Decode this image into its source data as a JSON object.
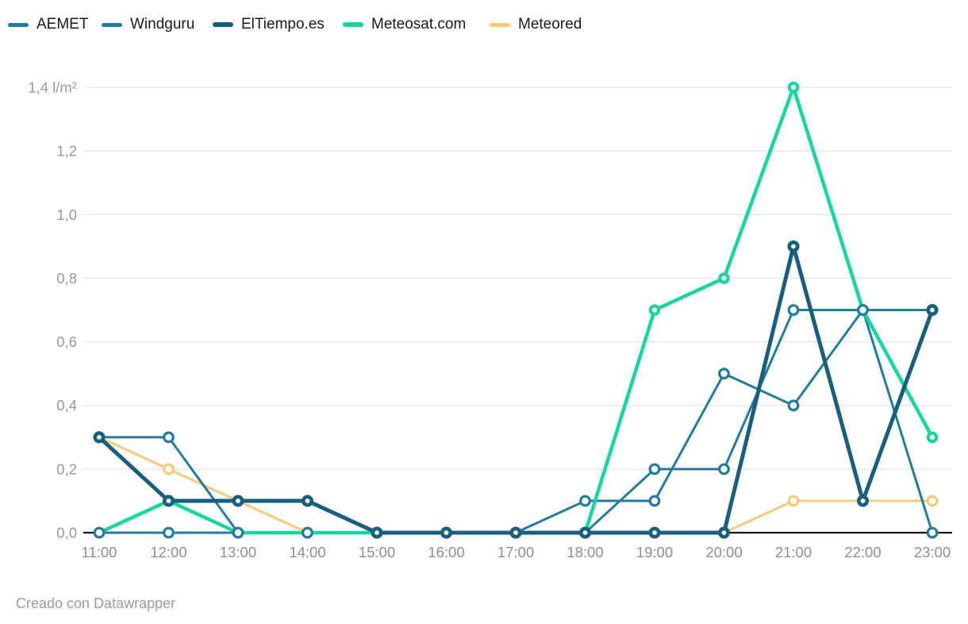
{
  "footer": {
    "credit": "Creado con Datawrapper"
  },
  "chart_data": {
    "type": "line",
    "title": "",
    "xlabel": "",
    "ylabel": "l/m²",
    "unit": "l/m²",
    "ylim": [
      0,
      1.4
    ],
    "grid": true,
    "legend_position": "top-left",
    "categories": [
      "11:00",
      "12:00",
      "13:00",
      "14:00",
      "15:00",
      "16:00",
      "17:00",
      "18:00",
      "19:00",
      "20:00",
      "21:00",
      "22:00",
      "23:00"
    ],
    "y_ticks": [
      {
        "v": 0.0,
        "label": "0,0"
      },
      {
        "v": 0.2,
        "label": "0,2"
      },
      {
        "v": 0.4,
        "label": "0,4"
      },
      {
        "v": 0.6,
        "label": "0,6"
      },
      {
        "v": 0.8,
        "label": "0,8"
      },
      {
        "v": 1.0,
        "label": "1,0"
      },
      {
        "v": 1.2,
        "label": "1,2"
      },
      {
        "v": 1.4,
        "label": "1,4 l/m²"
      }
    ],
    "series": [
      {
        "name": "AEMET",
        "color": "#227c9d",
        "values": [
          0,
          0,
          0,
          0,
          0,
          0,
          0,
          0.1,
          0.1,
          0.5,
          0.4,
          0.7,
          0
        ]
      },
      {
        "name": "Windguru",
        "color": "#227c9d",
        "values": [
          0.3,
          0.3,
          0,
          0,
          0,
          0,
          0,
          0,
          0.2,
          0.2,
          0.7,
          0.7,
          0.7
        ]
      },
      {
        "name": "ElTiempo.es",
        "color": "#195e7d",
        "values": [
          0.3,
          0.1,
          0.1,
          0.1,
          0,
          0,
          0,
          0,
          0,
          0,
          0.9,
          0.1,
          0.7
        ]
      },
      {
        "name": "Meteosat.com",
        "color": "#17d6a0",
        "values": [
          0,
          0.1,
          0,
          0,
          0,
          0,
          0,
          0,
          0.7,
          0.8,
          1.4,
          0.7,
          0.3
        ]
      },
      {
        "name": "Meteored",
        "color": "#fbc97a",
        "values": [
          0.3,
          0.2,
          0.1,
          0,
          0,
          0,
          0,
          0,
          0,
          0,
          0.1,
          0.1,
          0.1
        ]
      }
    ],
    "colors": {
      "gridline": "#e7e7e7",
      "baseline": "#151515",
      "axis_text": "#999999",
      "legend_text": "#1a1a1a"
    }
  }
}
